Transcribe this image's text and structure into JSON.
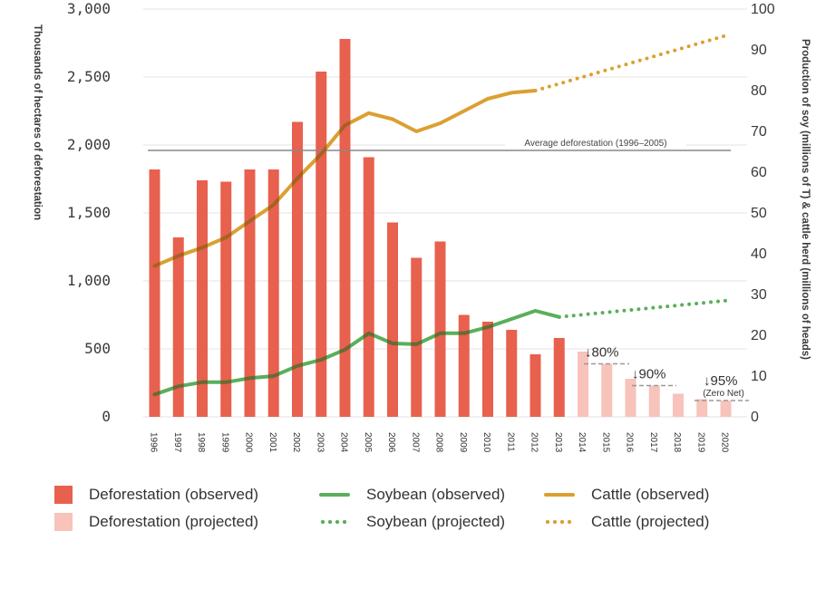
{
  "colors": {
    "deforestation_observed": "#e8604e",
    "deforestation_projected": "#f7c3bb",
    "soybean": "#5aaf5a",
    "cattle": "#dba031",
    "overlap": "#7a2e16",
    "reference_line": "#888888"
  },
  "chart_data": {
    "type": "bar",
    "categories": [
      "1996",
      "1997",
      "1998",
      "1999",
      "2000",
      "2001",
      "2002",
      "2003",
      "2004",
      "2005",
      "2006",
      "2007",
      "2008",
      "2009",
      "2010",
      "2011",
      "2012",
      "2013",
      "2014",
      "2015",
      "2016",
      "2017",
      "2018",
      "2019",
      "2020"
    ],
    "ylabel": "Thousands of hectares of deforestation",
    "y2label": "Production of soy (millions of T) & cattle herd (millions of heads)",
    "ylim": [
      0,
      3000
    ],
    "y2lim": [
      0,
      100
    ],
    "yticks": [
      "0",
      "500",
      "1,000",
      "1,500",
      "2,000",
      "2,500",
      "3,000"
    ],
    "y2ticks": [
      "0",
      "10",
      "20",
      "30",
      "40",
      "50",
      "60",
      "70",
      "80",
      "90",
      "100"
    ],
    "series": [
      {
        "name": "Deforestation (observed)",
        "type": "bar",
        "axis": "left",
        "values": [
          1820,
          1320,
          1740,
          1730,
          1820,
          1820,
          2170,
          2540,
          2780,
          1910,
          1430,
          1170,
          1290,
          750,
          700,
          640,
          460,
          580,
          null,
          null,
          null,
          null,
          null,
          null,
          null
        ]
      },
      {
        "name": "Deforestation (projected)",
        "type": "bar",
        "axis": "left",
        "values": [
          null,
          null,
          null,
          null,
          null,
          null,
          null,
          null,
          null,
          null,
          null,
          null,
          null,
          null,
          null,
          null,
          null,
          null,
          480,
          390,
          280,
          230,
          170,
          130,
          120
        ]
      },
      {
        "name": "Soybean (observed)",
        "type": "line",
        "axis": "right",
        "x": [
          1996,
          1997,
          1998,
          1999,
          2000,
          2001,
          2002,
          2003,
          2004,
          2005,
          2006,
          2007,
          2008,
          2009,
          2010,
          2011,
          2012,
          2013
        ],
        "values": [
          5.5,
          7.5,
          8.5,
          8.5,
          9.5,
          10,
          12.5,
          14,
          16.5,
          20.5,
          18,
          17.8,
          20.5,
          20.5,
          22,
          24,
          26,
          24.5
        ]
      },
      {
        "name": "Soybean (projected)",
        "type": "line",
        "style": "dotted",
        "axis": "right",
        "x": [
          2013,
          2020
        ],
        "values": [
          24.5,
          28.5
        ]
      },
      {
        "name": "Cattle (observed)",
        "type": "line",
        "axis": "right",
        "x": [
          1996,
          1997,
          1998,
          1999,
          2000,
          2001,
          2002,
          2003,
          2004,
          2005,
          2006,
          2007,
          2008,
          2009,
          2010,
          2011,
          2012
        ],
        "values": [
          37,
          39.5,
          41.5,
          44,
          48,
          52,
          58.5,
          64.5,
          71.5,
          74.5,
          73,
          70,
          72,
          75,
          78,
          79.5,
          80
        ]
      },
      {
        "name": "Cattle (projected)",
        "type": "line",
        "style": "dotted",
        "axis": "right",
        "x": [
          2012,
          2020
        ],
        "values": [
          80,
          93.5
        ]
      }
    ],
    "reference_line": {
      "value": 1960,
      "label": "Average deforestation (1996–2005)"
    },
    "annotations": [
      {
        "text": "↓80%",
        "target": 390
      },
      {
        "text": "↓90%",
        "target": 230
      },
      {
        "text": "↓95%",
        "subtext": "(Zero Net)",
        "target": 120
      }
    ]
  },
  "legend": {
    "def_obs": "Deforestation (observed)",
    "def_proj": "Deforestation (projected)",
    "soy_obs": "Soybean (observed)",
    "soy_proj": "Soybean (projected)",
    "cat_obs": "Cattle (observed)",
    "cat_proj": "Cattle (projected)"
  }
}
